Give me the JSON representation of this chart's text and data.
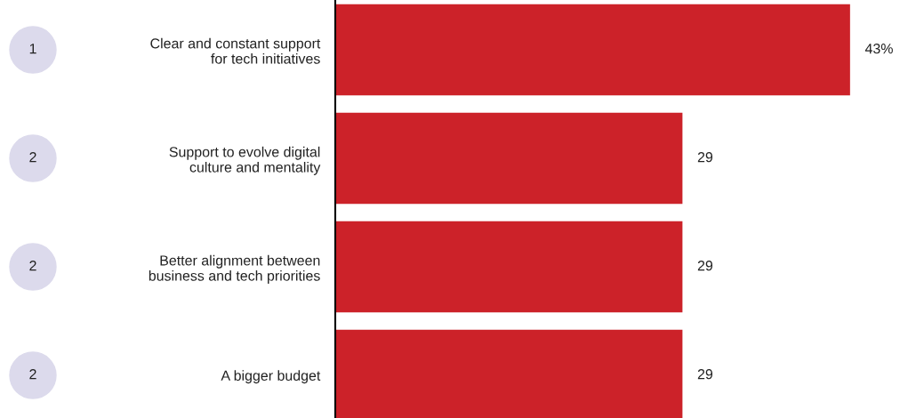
{
  "chart_data": {
    "type": "bar",
    "orientation": "horizontal",
    "categories": [
      "Clear and constant support\nfor tech initiatives",
      "Support to evolve digital\nculture and mentality",
      "Better alignment between\nbusiness and tech priorities",
      "A bigger budget"
    ],
    "values": [
      43,
      29,
      29,
      29
    ],
    "value_labels": [
      "43%",
      "29",
      "29",
      "29"
    ],
    "color": "#cc2229",
    "tick_labels": "y",
    "annotations": [
      "1",
      "2",
      "2",
      "2"
    ],
    "grid": false,
    "legend": false
  }
}
